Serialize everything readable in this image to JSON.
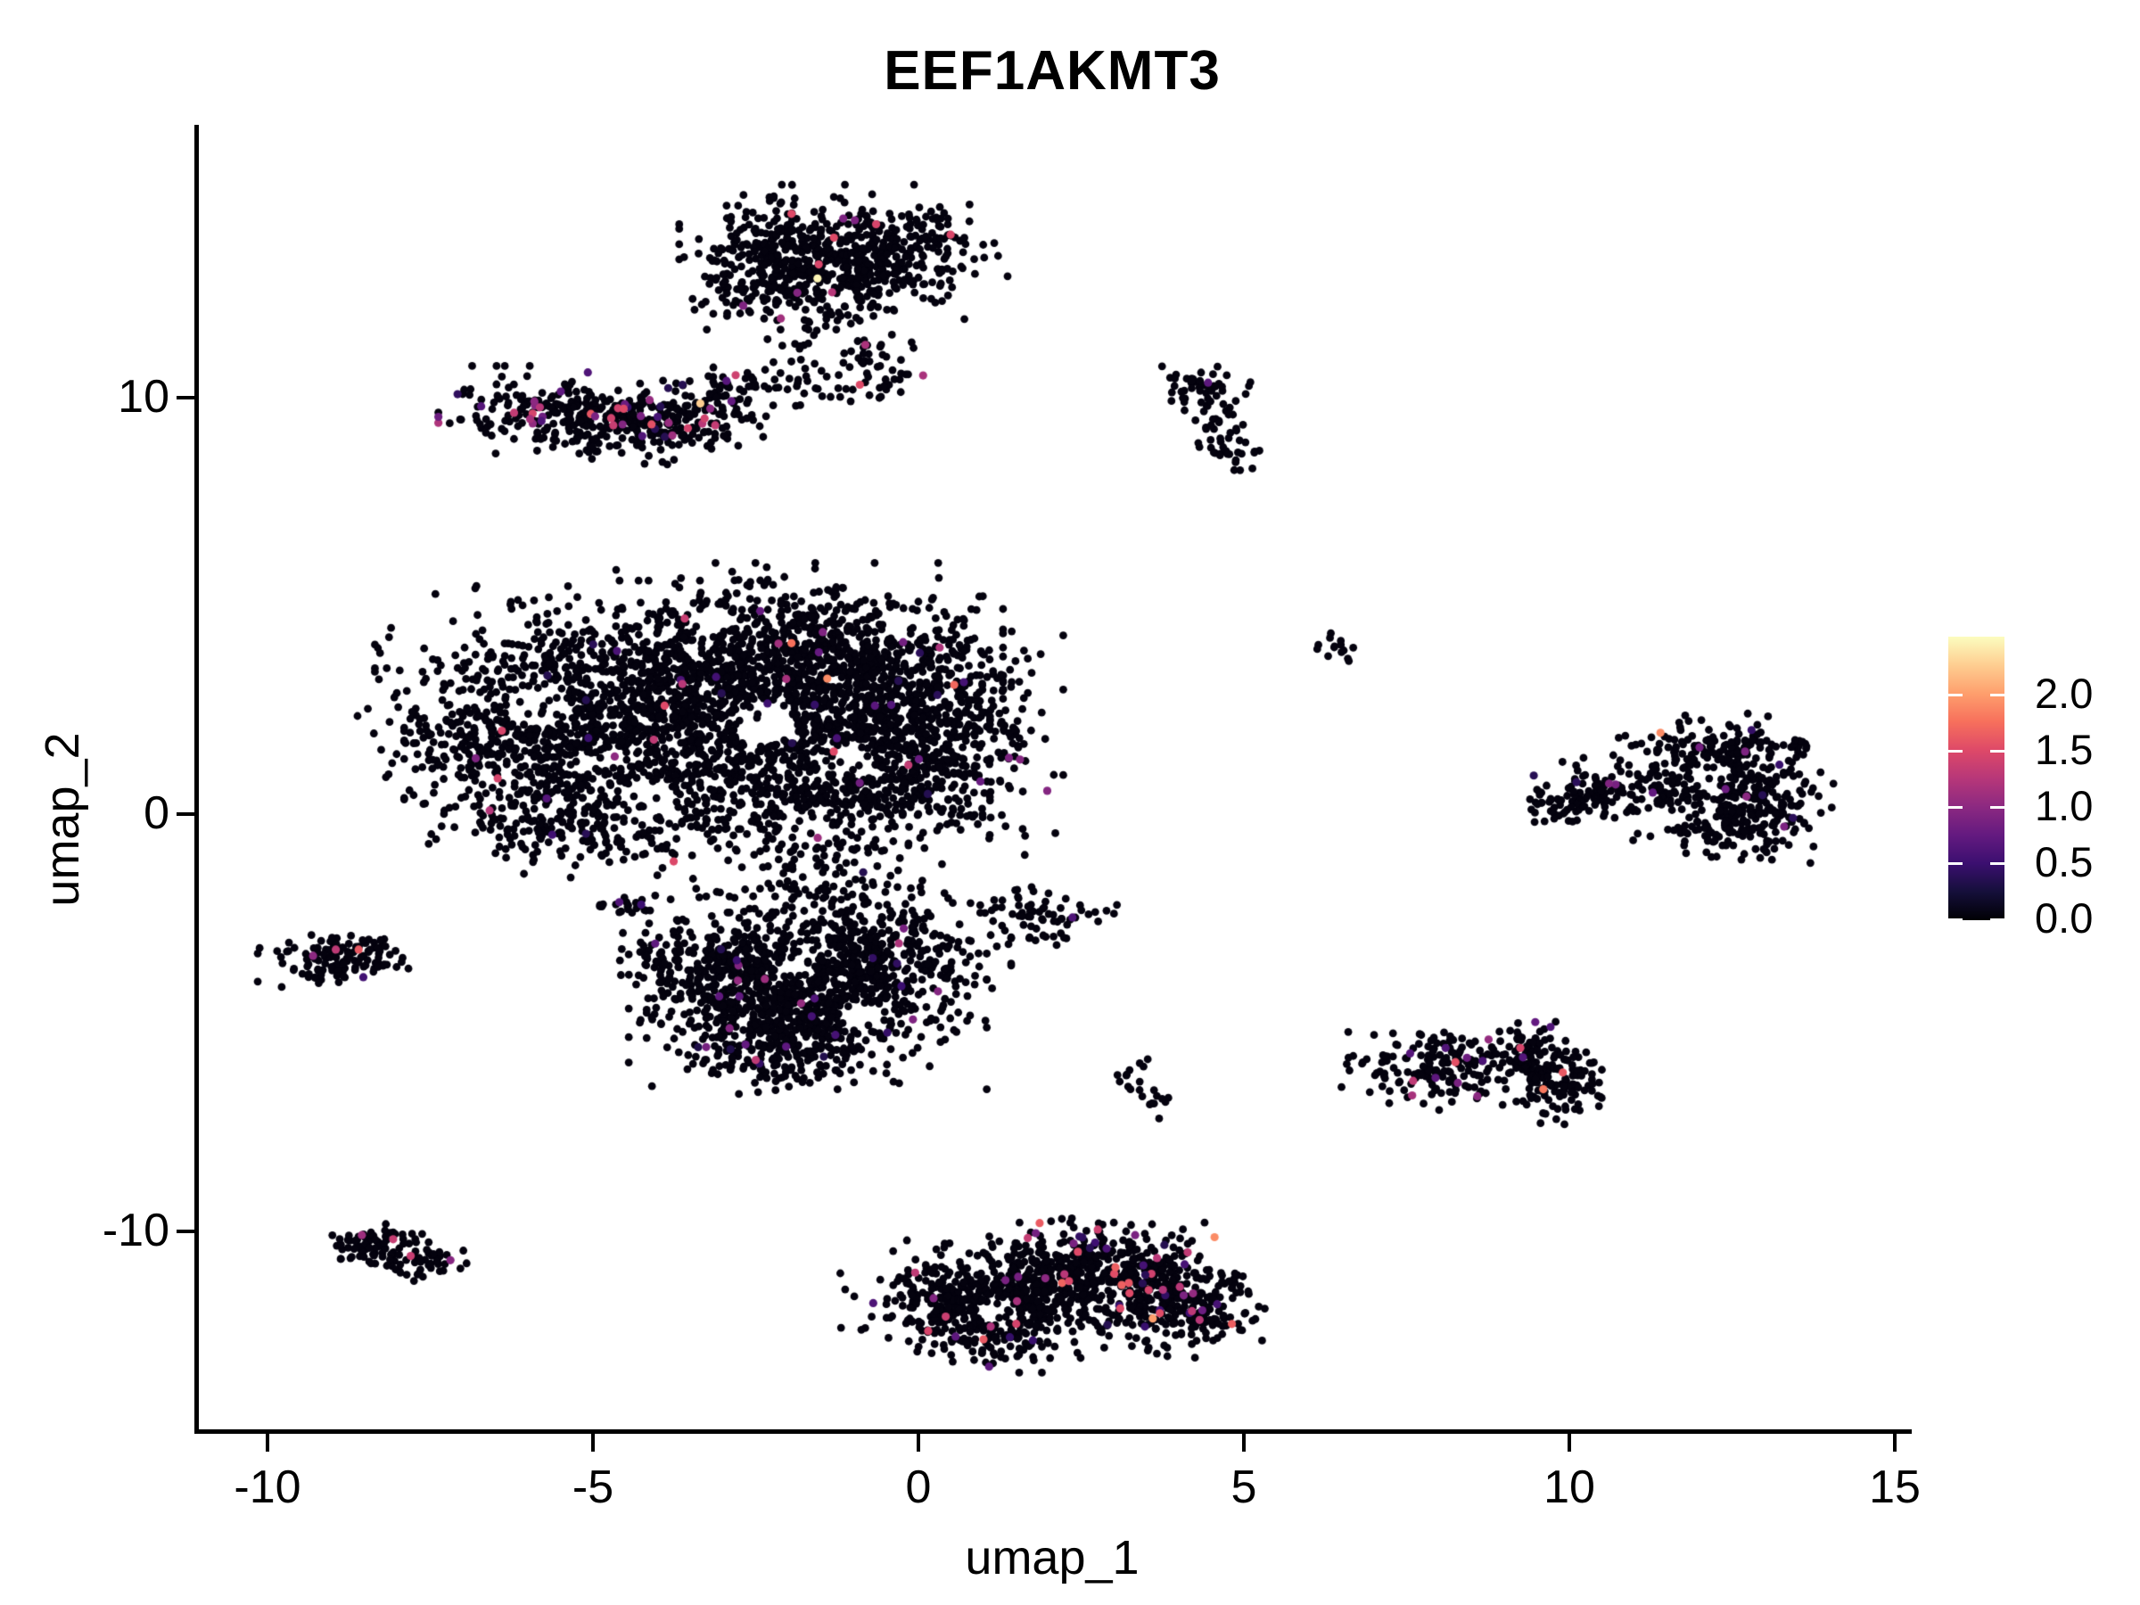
{
  "title": "EEF1AKMT3",
  "colors": {
    "background": "#ffffff",
    "axis": "#000000",
    "text": "#000000",
    "point_base": "#04020e"
  },
  "axes": {
    "x": {
      "label": "umap_1",
      "ticks": [
        "-10",
        "-5",
        "0",
        "5",
        "10",
        "15"
      ],
      "tick_values": [
        -10,
        -5,
        0,
        5,
        10,
        15
      ]
    },
    "y": {
      "label": "umap_2",
      "ticks": [
        "10",
        "0",
        "-10"
      ],
      "tick_values": [
        10,
        0,
        -10
      ]
    }
  },
  "legend": {
    "colormap": "magma",
    "vmin": 0.0,
    "vmax": 2.5,
    "tick_labels": [
      "2.0",
      "1.5",
      "1.0",
      "0.5",
      "0.0"
    ],
    "tick_values": [
      2.0,
      1.5,
      1.0,
      0.5,
      0.0
    ],
    "stops": [
      {
        "t": 0.0,
        "c": "#000004"
      },
      {
        "t": 0.1,
        "c": "#150f3a"
      },
      {
        "t": 0.2,
        "c": "#3b0f70"
      },
      {
        "t": 0.3,
        "c": "#641a80"
      },
      {
        "t": 0.4,
        "c": "#8c2981"
      },
      {
        "t": 0.5,
        "c": "#b73779"
      },
      {
        "t": 0.6,
        "c": "#de4968"
      },
      {
        "t": 0.7,
        "c": "#f7705c"
      },
      {
        "t": 0.8,
        "c": "#fe9f6d"
      },
      {
        "t": 0.9,
        "c": "#fece91"
      },
      {
        "t": 1.0,
        "c": "#fcfdbf"
      }
    ]
  },
  "chart_data": {
    "type": "scatter",
    "title": "EEF1AKMT3",
    "xlabel": "umap_1",
    "ylabel": "umap_2",
    "color_field": "EEF1AKMT3 expression",
    "x_range": [
      -11.2,
      15.8
    ],
    "y_range": [
      -14.8,
      16.5
    ],
    "point_radius_px": 4.4,
    "note": "Cells are summarized as gaussian blobs [cx, cy, sx, sy, n]; expr_frac = fraction of colored (expressing) cells; specials = explicit bright cells [x, y, value]; holes = sparse gaps [x, y, r].",
    "clusters": [
      {
        "name": "top-blob",
        "expr_frac": 0.012,
        "expr_val_range": [
          0.9,
          1.6
        ],
        "blobs": [
          [
            -1.8,
            13.6,
            0.75,
            0.6,
            280
          ],
          [
            -0.6,
            13.25,
            0.8,
            0.55,
            260
          ],
          [
            -2.35,
            12.75,
            0.5,
            0.45,
            120
          ],
          [
            -0.05,
            14.0,
            0.45,
            0.4,
            50
          ]
        ],
        "specials": [
          [
            -1.55,
            12.85,
            2.45
          ],
          [
            -1.95,
            14.4,
            1.5
          ],
          [
            -0.65,
            14.15,
            1.45
          ]
        ],
        "holes": []
      },
      {
        "name": "top-trail",
        "expr_frac": 0.01,
        "expr_val_range": [
          1.0,
          1.5
        ],
        "blobs": [
          [
            -1.55,
            11.7,
            0.4,
            0.6,
            50
          ],
          [
            -2.0,
            10.6,
            0.45,
            0.4,
            30
          ],
          [
            -0.9,
            10.9,
            0.5,
            0.45,
            25
          ],
          [
            -0.4,
            10.35,
            0.3,
            0.25,
            18
          ]
        ],
        "specials": [
          [
            -0.9,
            10.3,
            1.5
          ]
        ],
        "holes": []
      },
      {
        "name": "left-elongated",
        "expr_frac": 0.085,
        "expr_val_range": [
          0.35,
          1.6
        ],
        "blobs": [
          [
            -5.5,
            9.7,
            0.75,
            0.42,
            210
          ],
          [
            -4.3,
            9.3,
            0.65,
            0.38,
            150
          ],
          [
            -3.3,
            9.55,
            0.5,
            0.42,
            80
          ],
          [
            -2.9,
            10.1,
            0.3,
            0.3,
            30
          ]
        ],
        "specials": [
          [
            -3.35,
            9.85,
            2.25
          ],
          [
            -4.1,
            9.35,
            1.55
          ],
          [
            -5.9,
            9.9,
            1.0
          ]
        ],
        "holes": []
      },
      {
        "name": "small-banana",
        "expr_frac": 0.012,
        "expr_val_range": [
          0.6,
          0.8
        ],
        "blobs": [
          [
            4.35,
            10.2,
            0.3,
            0.28,
            45
          ],
          [
            4.7,
            9.4,
            0.2,
            0.45,
            30
          ],
          [
            4.85,
            8.7,
            0.22,
            0.28,
            18
          ]
        ],
        "specials": [
          [
            4.45,
            10.35,
            0.7
          ]
        ],
        "holes": []
      },
      {
        "name": "tiny-dot",
        "expr_frac": 0,
        "expr_val_range": [
          0,
          0
        ],
        "blobs": [
          [
            6.45,
            4.05,
            0.17,
            0.17,
            14
          ]
        ],
        "specials": [],
        "holes": []
      },
      {
        "name": "main-blob",
        "expr_frac": 0.016,
        "expr_val_range": [
          0.35,
          1.6
        ],
        "blobs": [
          [
            -4.6,
            3.1,
            1.5,
            1.0,
            650
          ],
          [
            -2.2,
            3.9,
            1.4,
            0.85,
            750
          ],
          [
            -0.4,
            2.6,
            1.05,
            1.05,
            650
          ],
          [
            -3.4,
            1.4,
            1.8,
            0.95,
            750
          ],
          [
            -6.3,
            1.7,
            0.95,
            0.95,
            330
          ],
          [
            -0.9,
            0.6,
            1.25,
            0.8,
            330
          ],
          [
            -5.2,
            -0.3,
            0.85,
            0.5,
            180
          ],
          [
            -2.7,
            2.3,
            1.7,
            1.4,
            160
          ],
          [
            -1.6,
            -1.3,
            0.8,
            0.45,
            70
          ],
          [
            0.3,
            1.5,
            0.6,
            0.9,
            130
          ]
        ],
        "specials": [
          [
            -1.4,
            3.25,
            1.9
          ],
          [
            -1.95,
            4.1,
            1.75
          ],
          [
            0.55,
            3.1,
            1.7
          ],
          [
            -1.3,
            1.5,
            1.5
          ],
          [
            -6.4,
            2.0,
            1.45
          ],
          [
            -3.9,
            2.6,
            1.5
          ]
        ],
        "holes": [
          [
            -5.8,
            2.6,
            0.5
          ],
          [
            -2.4,
            2.15,
            0.5
          ],
          [
            -1.15,
            1.3,
            0.45
          ],
          [
            -4.2,
            0.35,
            0.4
          ],
          [
            -0.2,
            4.5,
            0.35
          ],
          [
            -3.2,
            4.6,
            0.35
          ]
        ]
      },
      {
        "name": "mid-strip",
        "expr_frac": 0.04,
        "expr_val_range": [
          0.5,
          0.8
        ],
        "blobs": [
          [
            -4.55,
            -2.2,
            0.35,
            0.13,
            22
          ]
        ],
        "specials": [],
        "holes": []
      },
      {
        "name": "lower-blob",
        "expr_frac": 0.02,
        "expr_val_range": [
          0.3,
          1.1
        ],
        "blobs": [
          [
            -1.7,
            -4.6,
            1.1,
            0.8,
            560
          ],
          [
            -3.0,
            -3.6,
            0.75,
            0.65,
            320
          ],
          [
            -0.7,
            -3.5,
            0.85,
            0.7,
            320
          ],
          [
            -2.3,
            -5.5,
            0.75,
            0.5,
            190
          ],
          [
            -1.2,
            -2.3,
            0.8,
            0.45,
            80
          ]
        ],
        "specials": [
          [
            -2.5,
            -5.9,
            1.3
          ],
          [
            -0.3,
            -3.1,
            1.2
          ]
        ],
        "holes": [
          [
            -1.95,
            -3.7,
            0.35
          ],
          [
            -0.85,
            -4.9,
            0.3
          ]
        ]
      },
      {
        "name": "small-mid-right",
        "expr_frac": 0.015,
        "expr_val_range": [
          0.5,
          0.7
        ],
        "blobs": [
          [
            2.0,
            -2.5,
            0.42,
            0.3,
            60
          ],
          [
            1.45,
            -2.1,
            0.2,
            0.18,
            10
          ]
        ],
        "specials": [],
        "holes": []
      },
      {
        "name": "left-small",
        "expr_frac": 0.03,
        "expr_val_range": [
          0.5,
          1.3
        ],
        "blobs": [
          [
            -9.1,
            -3.55,
            0.42,
            0.3,
            85
          ],
          [
            -8.45,
            -3.35,
            0.35,
            0.25,
            45
          ]
        ],
        "specials": [
          [
            -8.6,
            -3.25,
            1.6
          ],
          [
            -9.3,
            -3.4,
            1.0
          ]
        ],
        "holes": []
      },
      {
        "name": "tiny-diag",
        "expr_frac": 0,
        "expr_val_range": [
          0,
          0
        ],
        "blobs": [
          [
            3.25,
            -6.25,
            0.17,
            0.2,
            10
          ],
          [
            3.55,
            -6.75,
            0.2,
            0.25,
            12
          ]
        ],
        "specials": [],
        "holes": []
      },
      {
        "name": "right-mid",
        "expr_frac": 0.05,
        "expr_val_range": [
          0.6,
          1.6
        ],
        "blobs": [
          [
            8.0,
            -6.15,
            0.6,
            0.38,
            150
          ],
          [
            9.25,
            -5.75,
            0.5,
            0.33,
            120
          ],
          [
            9.85,
            -6.55,
            0.35,
            0.4,
            90
          ]
        ],
        "specials": [
          [
            9.6,
            -6.6,
            1.8
          ],
          [
            8.25,
            -5.95,
            1.55
          ],
          [
            7.6,
            -6.4,
            1.3
          ],
          [
            9.9,
            -6.2,
            1.6
          ]
        ],
        "holes": []
      },
      {
        "name": "bottom-left-lobe",
        "expr_frac": 0.02,
        "expr_val_range": [
          0.4,
          1.5
        ],
        "blobs": [
          [
            0.55,
            -11.6,
            0.7,
            0.55,
            300
          ],
          [
            1.25,
            -12.45,
            0.55,
            0.38,
            130
          ],
          [
            1.9,
            -11.15,
            0.65,
            0.5,
            260
          ]
        ],
        "specials": [
          [
            0.15,
            -12.4,
            1.45
          ],
          [
            1.0,
            -12.6,
            1.6
          ],
          [
            -0.05,
            -11.0,
            1.3
          ]
        ],
        "holes": [
          [
            1.2,
            -11.9,
            0.32
          ]
        ]
      },
      {
        "name": "bottom-right-lobe",
        "expr_frac": 0.075,
        "expr_val_range": [
          0.35,
          1.7
        ],
        "blobs": [
          [
            3.2,
            -11.3,
            0.75,
            0.6,
            380
          ],
          [
            4.25,
            -11.85,
            0.45,
            0.5,
            150
          ],
          [
            2.7,
            -10.4,
            0.45,
            0.3,
            60
          ]
        ],
        "specials": [
          [
            4.55,
            -10.15,
            1.9
          ],
          [
            3.6,
            -12.1,
            2.0
          ],
          [
            2.45,
            -10.5,
            1.5
          ]
        ],
        "holes": [
          [
            2.85,
            -11.5,
            0.28
          ]
        ]
      },
      {
        "name": "bottom-left-small",
        "expr_frac": 0.03,
        "expr_val_range": [
          0.8,
          1.4
        ],
        "blobs": [
          [
            -8.35,
            -10.3,
            0.4,
            0.23,
            70
          ],
          [
            -7.75,
            -10.7,
            0.33,
            0.2,
            50
          ]
        ],
        "specials": [
          [
            -8.55,
            -10.1,
            1.1
          ],
          [
            -7.8,
            -10.6,
            1.35
          ]
        ],
        "holes": []
      },
      {
        "name": "right-big",
        "expr_frac": 0.018,
        "expr_val_range": [
          0.35,
          1.0
        ],
        "blobs": [
          [
            12.3,
            1.55,
            0.65,
            0.38,
            170
          ],
          [
            13.05,
            0.3,
            0.42,
            0.6,
            150
          ],
          [
            11.9,
            0.5,
            0.6,
            0.5,
            170
          ],
          [
            10.65,
            0.6,
            0.4,
            0.3,
            60
          ],
          [
            9.95,
            0.3,
            0.32,
            0.25,
            60
          ],
          [
            12.3,
            -0.45,
            0.5,
            0.28,
            40
          ]
        ],
        "specials": [
          [
            11.4,
            1.95,
            1.9
          ],
          [
            12.7,
            1.5,
            0.9
          ],
          [
            12.0,
            1.6,
            0.85
          ],
          [
            13.3,
            -0.3,
            0.9
          ],
          [
            12.4,
            0.6,
            0.8
          ]
        ],
        "holes": [
          [
            12.15,
            0.95,
            0.3
          ],
          [
            11.5,
            -0.05,
            0.3
          ]
        ]
      }
    ]
  }
}
